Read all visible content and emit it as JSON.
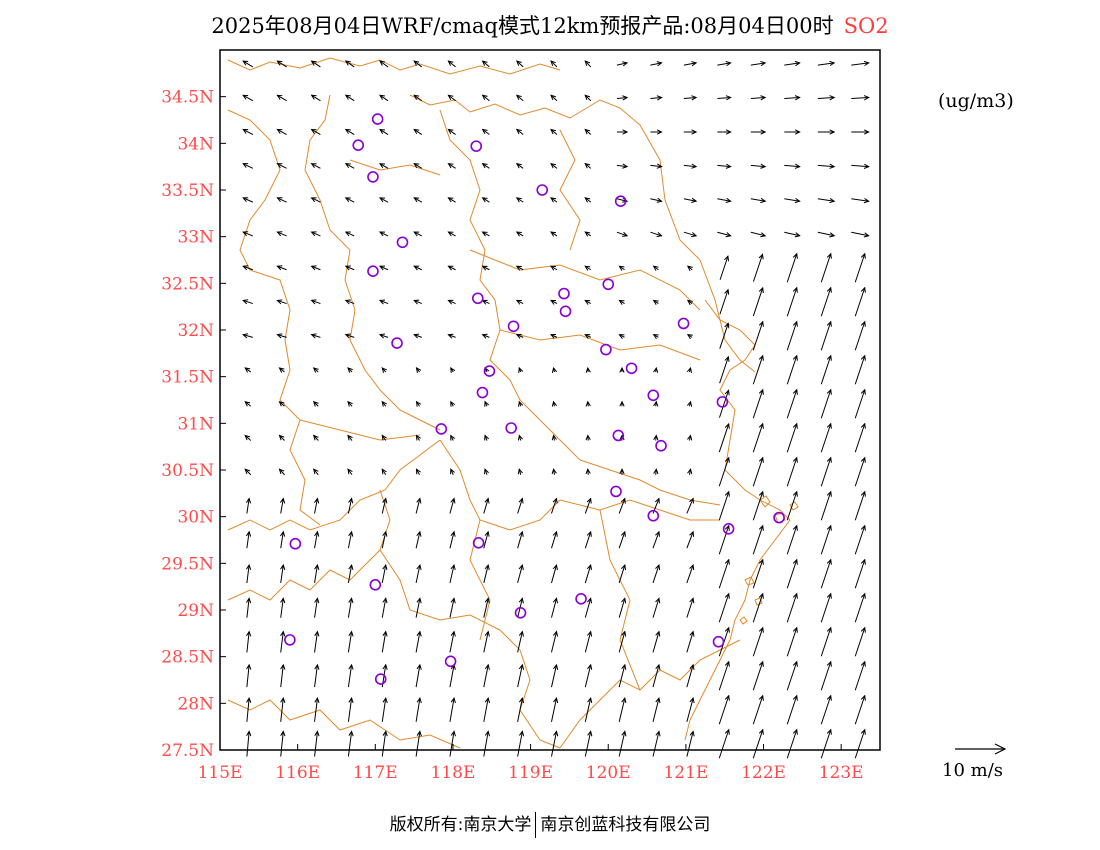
{
  "header": {
    "title": "2025年08月04日WRF/cmaq模式12km预报产品:08月04日00时",
    "species": "SO2"
  },
  "units_label": "(ug/m3)",
  "reference_vector_label": "10  m/s",
  "footer": {
    "left": "版权所有:南京大学",
    "right": "南京创蓝科技有限公司"
  },
  "map": {
    "lon_range": [
      115,
      123.5
    ],
    "lat_range": [
      27.5,
      35
    ],
    "x_ticks": [
      "115E",
      "116E",
      "117E",
      "118E",
      "119E",
      "120E",
      "121E",
      "122E",
      "123E"
    ],
    "y_ticks": [
      "27.5N",
      "28N",
      "28.5N",
      "29N",
      "29.5N",
      "30N",
      "30.5N",
      "31N",
      "31.5N",
      "32N",
      "32.5N",
      "33N",
      "33.5N",
      "34N",
      "34.5N"
    ],
    "colors": {
      "boundary": "#e08a2c",
      "tick_label": "#ff4a4a",
      "station": "#8a00d4",
      "vector": "#000000"
    },
    "stations": [
      {
        "lon": 117.03,
        "lat": 34.26
      },
      {
        "lon": 116.78,
        "lat": 33.98
      },
      {
        "lon": 118.3,
        "lat": 33.97
      },
      {
        "lon": 116.97,
        "lat": 33.64
      },
      {
        "lon": 119.15,
        "lat": 33.5
      },
      {
        "lon": 120.16,
        "lat": 33.38
      },
      {
        "lon": 117.35,
        "lat": 32.94
      },
      {
        "lon": 116.97,
        "lat": 32.63
      },
      {
        "lon": 120.0,
        "lat": 32.49
      },
      {
        "lon": 119.43,
        "lat": 32.39
      },
      {
        "lon": 118.32,
        "lat": 32.34
      },
      {
        "lon": 119.45,
        "lat": 32.2
      },
      {
        "lon": 118.78,
        "lat": 32.04
      },
      {
        "lon": 120.97,
        "lat": 32.07
      },
      {
        "lon": 117.28,
        "lat": 31.86
      },
      {
        "lon": 119.97,
        "lat": 31.79
      },
      {
        "lon": 120.3,
        "lat": 31.59
      },
      {
        "lon": 118.47,
        "lat": 31.56
      },
      {
        "lon": 118.38,
        "lat": 31.33
      },
      {
        "lon": 120.58,
        "lat": 31.3
      },
      {
        "lon": 121.47,
        "lat": 31.23
      },
      {
        "lon": 117.85,
        "lat": 30.94
      },
      {
        "lon": 118.75,
        "lat": 30.95
      },
      {
        "lon": 120.13,
        "lat": 30.87
      },
      {
        "lon": 120.68,
        "lat": 30.76
      },
      {
        "lon": 120.1,
        "lat": 30.27
      },
      {
        "lon": 120.58,
        "lat": 30.01
      },
      {
        "lon": 122.2,
        "lat": 29.99
      },
      {
        "lon": 121.55,
        "lat": 29.87
      },
      {
        "lon": 115.97,
        "lat": 29.71
      },
      {
        "lon": 118.33,
        "lat": 29.72
      },
      {
        "lon": 117.0,
        "lat": 29.27
      },
      {
        "lon": 119.65,
        "lat": 29.12
      },
      {
        "lon": 118.87,
        "lat": 28.97
      },
      {
        "lon": 115.9,
        "lat": 28.68
      },
      {
        "lon": 121.42,
        "lat": 28.66
      },
      {
        "lon": 117.97,
        "lat": 28.45
      },
      {
        "lon": 117.07,
        "lat": 28.26
      }
    ]
  }
}
